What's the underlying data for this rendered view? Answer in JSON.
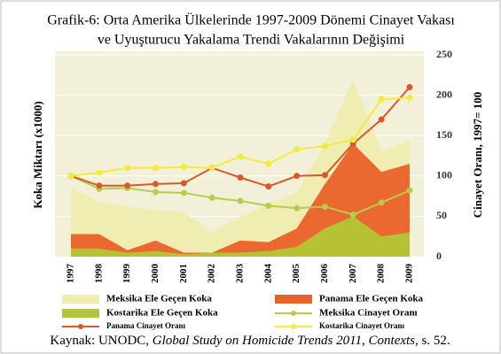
{
  "chart_data": {
    "type": "line",
    "title": [
      "Grafik-6: Orta Amerika Ülkelerinde 1997-2009 Dönemi Cinayet  Vakası",
      "ve Uyuşturucu Yakalama Trendi Vakalarının Değişimi"
    ],
    "y_label": "Koka Miktarı (x1000)",
    "y2_label": "Cinayet Oranı, 1997= 100",
    "categories": [
      "1997",
      "1998",
      "1999",
      "2000",
      "2001",
      "2002",
      "2003",
      "2004",
      "2005",
      "2006",
      "2007",
      "2008",
      "2009"
    ],
    "ylim": [
      0,
      250
    ],
    "yticks": [
      0,
      50,
      100,
      150,
      200,
      250
    ],
    "grid": true,
    "series": [
      {
        "name": "Meksika Ele Geçen Koka",
        "mark": "area",
        "color": "#efedb2",
        "values": [
          85,
          68,
          62,
          58,
          55,
          30,
          50,
          65,
          80,
          140,
          220,
          130,
          145
        ]
      },
      {
        "name": "Panama Ele Geçen Koka",
        "mark": "area",
        "color": "#e8622a",
        "values": [
          28,
          28,
          8,
          20,
          5,
          5,
          20,
          18,
          35,
          90,
          140,
          105,
          115
        ]
      },
      {
        "name": "Kostarika Ele Geçen Koka",
        "mark": "area",
        "color": "#b3c734",
        "values": [
          10,
          10,
          5,
          7,
          3,
          5,
          5,
          7,
          12,
          35,
          50,
          25,
          30
        ]
      },
      {
        "name": "Meksika Cinayet Oranı",
        "mark": "line",
        "color": "#b9cb4c",
        "values": [
          100,
          84,
          85,
          80,
          79,
          73,
          69,
          63,
          60,
          62,
          52,
          67,
          82
        ]
      },
      {
        "name": "Panama Cinayet Oranı",
        "mark": "line",
        "color": "#d65a2a",
        "values": [
          100,
          88,
          88,
          90,
          91,
          110,
          98,
          87,
          100,
          101,
          140,
          170,
          210
        ]
      },
      {
        "name": "Kostarika Cinayet Oranı",
        "mark": "line",
        "color": "#f2ec3a",
        "values": [
          100,
          104,
          110,
          110,
          111,
          110,
          124,
          115,
          133,
          137,
          145,
          195,
          197
        ]
      }
    ],
    "source": [
      "Kaynak: UNODC, ",
      "Global Study on Homicide Trends 2011, Contexts",
      ", s. 52."
    ]
  }
}
